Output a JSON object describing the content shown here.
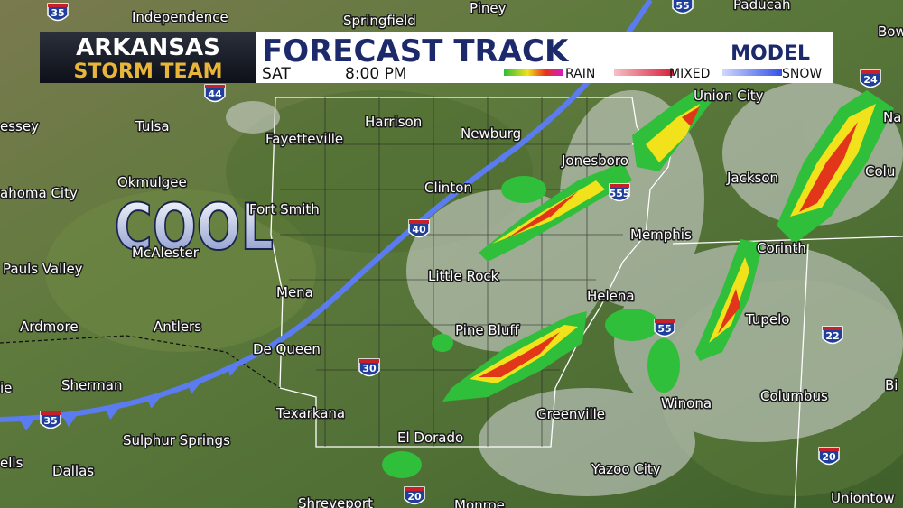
{
  "header": {
    "brand_top": "ARKANSAS",
    "brand_bottom": "STORM TEAM",
    "title": "FORECAST TRACK",
    "day": "SAT",
    "time": "8:00 PM",
    "product": "MODEL",
    "legend": [
      "RAIN",
      "MIXED",
      "SNOW"
    ]
  },
  "air_mass_label": "COOL",
  "cities": [
    "Independence",
    "Springfield",
    "Piney",
    "Paducah",
    "Bow",
    "Harrison",
    "Union City",
    "Newburg",
    "Fayetteville",
    "Tulsa",
    "essey",
    "Na",
    "Jonesboro",
    "Jackson",
    "Colu",
    "Okmulgee",
    "ahoma City",
    "Clinton",
    "Fort Smith",
    "Memphis",
    "Corinth",
    "McAlester",
    "Pauls Valley",
    "Little Rock",
    "Mena",
    "Helena",
    "Tupelo",
    "Ardmore",
    "Antlers",
    "Pine Bluff",
    "De Queen",
    "ie",
    "Sherman",
    "Winona",
    "Columbus",
    "Bi",
    "Texarkana",
    "Greenville",
    "El Dorado",
    "Sulphur Springs",
    "ells",
    "Dallas",
    "Yazoo City",
    "Shreveport",
    "Monroe",
    "Uniontow"
  ],
  "interstates": [
    "35",
    "55",
    "44",
    "24",
    "555",
    "40",
    "55",
    "22",
    "30",
    "35",
    "20",
    "20"
  ]
}
